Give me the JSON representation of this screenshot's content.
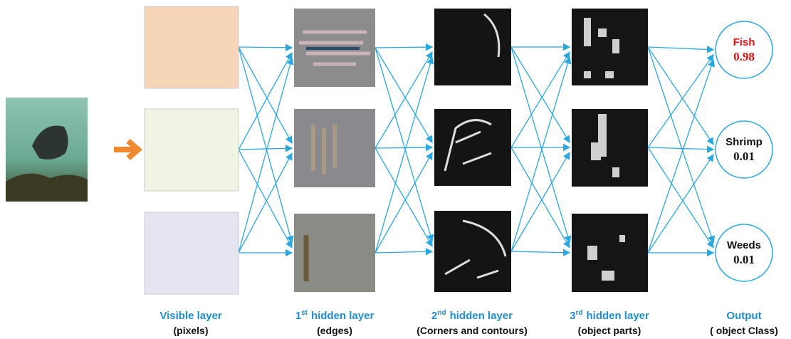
{
  "layers": [
    {
      "title": "Visible layer",
      "caption": "(pixels)"
    },
    {
      "number": "1",
      "suffix": "st",
      "title": "hidden layer",
      "caption": "(edges)"
    },
    {
      "number": "2",
      "suffix": "nd",
      "title": "hidden layer",
      "caption": "(Corners and contours)"
    },
    {
      "number": "3",
      "suffix": "rd",
      "title": "hidden layer",
      "caption": "(object parts)"
    }
  ],
  "output": {
    "title": "Output",
    "caption": "( object Class)",
    "classes": [
      {
        "label": "Fish",
        "score": 0.98
      },
      {
        "label": "Shrimp",
        "score": 0.01
      },
      {
        "label": "Weeds",
        "score": 0.01
      }
    ]
  }
}
